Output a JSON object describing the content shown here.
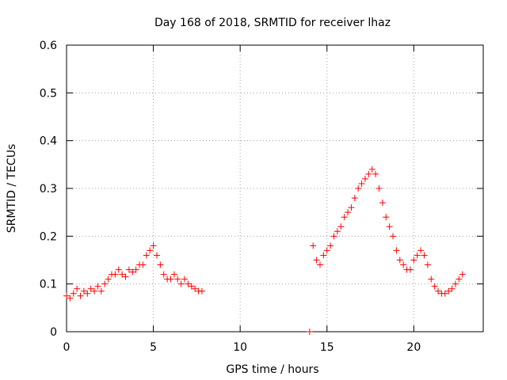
{
  "chart_data": {
    "type": "scatter",
    "title": "Day 168 of 2018, SRMTID for receiver lhaz",
    "xlabel": "GPS time / hours",
    "ylabel": "SRMTID / TECUs",
    "xlim": [
      0,
      24
    ],
    "ylim": [
      0,
      0.6
    ],
    "x_ticks": [
      0,
      5,
      10,
      15,
      20
    ],
    "x_tick_labels": [
      "0",
      "5",
      "10",
      "15",
      "20"
    ],
    "y_ticks": [
      0,
      0.1,
      0.2,
      0.3,
      0.4,
      0.5,
      0.6
    ],
    "y_tick_labels": [
      "0",
      "0.1",
      "0.2",
      "0.3",
      "0.4",
      "0.5",
      "0.6"
    ],
    "grid": true,
    "marker": "+",
    "colors": {
      "series": "#ff0000",
      "axis": "#000000",
      "grid": "#a0a0a0"
    },
    "series": [
      {
        "name": "SRMTID",
        "x": [
          0.0,
          0.2,
          0.4,
          0.6,
          0.8,
          1.0,
          1.2,
          1.4,
          1.6,
          1.8,
          2.0,
          2.2,
          2.4,
          2.6,
          2.8,
          3.0,
          3.2,
          3.4,
          3.6,
          3.8,
          4.0,
          4.2,
          4.4,
          4.6,
          4.8,
          5.0,
          5.2,
          5.4,
          5.6,
          5.8,
          6.0,
          6.2,
          6.4,
          6.6,
          6.8,
          7.0,
          7.2,
          7.4,
          7.6,
          7.8,
          14.0,
          14.2,
          14.4,
          14.6,
          14.8,
          15.0,
          15.2,
          15.4,
          15.6,
          15.8,
          16.0,
          16.2,
          16.4,
          16.6,
          16.8,
          17.0,
          17.2,
          17.4,
          17.6,
          17.8,
          18.0,
          18.2,
          18.4,
          18.6,
          18.8,
          19.0,
          19.2,
          19.4,
          19.6,
          19.8,
          20.0,
          20.2,
          20.4,
          20.6,
          20.8,
          21.0,
          21.2,
          21.4,
          21.6,
          21.8,
          22.0,
          22.2,
          22.4,
          22.6,
          22.8
        ],
        "y": [
          0.075,
          0.07,
          0.08,
          0.09,
          0.075,
          0.085,
          0.08,
          0.09,
          0.085,
          0.095,
          0.085,
          0.1,
          0.11,
          0.12,
          0.12,
          0.13,
          0.12,
          0.115,
          0.13,
          0.125,
          0.13,
          0.14,
          0.14,
          0.16,
          0.17,
          0.18,
          0.16,
          0.14,
          0.12,
          0.11,
          0.11,
          0.12,
          0.11,
          0.1,
          0.11,
          0.1,
          0.095,
          0.09,
          0.085,
          0.085,
          0.0,
          0.18,
          0.15,
          0.14,
          0.16,
          0.17,
          0.18,
          0.2,
          0.21,
          0.22,
          0.24,
          0.25,
          0.26,
          0.28,
          0.3,
          0.31,
          0.32,
          0.33,
          0.34,
          0.33,
          0.3,
          0.27,
          0.24,
          0.22,
          0.2,
          0.17,
          0.15,
          0.14,
          0.13,
          0.13,
          0.15,
          0.16,
          0.17,
          0.16,
          0.14,
          0.11,
          0.095,
          0.085,
          0.08,
          0.08,
          0.085,
          0.09,
          0.1,
          0.11,
          0.12
        ]
      }
    ]
  }
}
